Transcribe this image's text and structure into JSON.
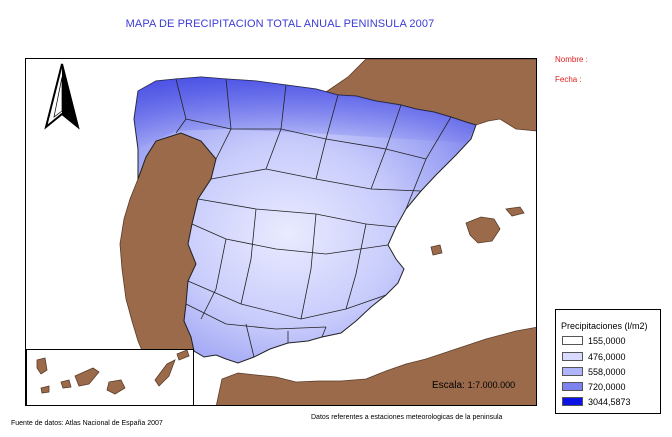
{
  "title": "MAPA DE PRECIPITACION TOTAL ANUAL PENINSULA 2007",
  "fields": {
    "name_label": "Nombre :",
    "date_label": "Fecha :"
  },
  "scale": {
    "label": "Escala:",
    "value": "1:7.000.000"
  },
  "legend": {
    "title": "Precipitaciones (l/m2)",
    "items": [
      {
        "label": "155,0000",
        "color": "#ffffff"
      },
      {
        "label": "476,0000",
        "color": "#d8dbff"
      },
      {
        "label": "558,0000",
        "color": "#b0b4fa"
      },
      {
        "label": "720,0000",
        "color": "#7c82ee"
      },
      {
        "label": "3044,5873",
        "color": "#0a12e6"
      }
    ]
  },
  "source_left": "Fuente de datos: Atlas Nacional de España 2007",
  "source_right": "Datos referentes a estaciones meteorologicas de la peninsula",
  "colors": {
    "title": "#3b3bd6",
    "meta": "#e02020",
    "land": "#9b6a4b"
  },
  "icons": {
    "north_arrow": "north-arrow-icon"
  }
}
